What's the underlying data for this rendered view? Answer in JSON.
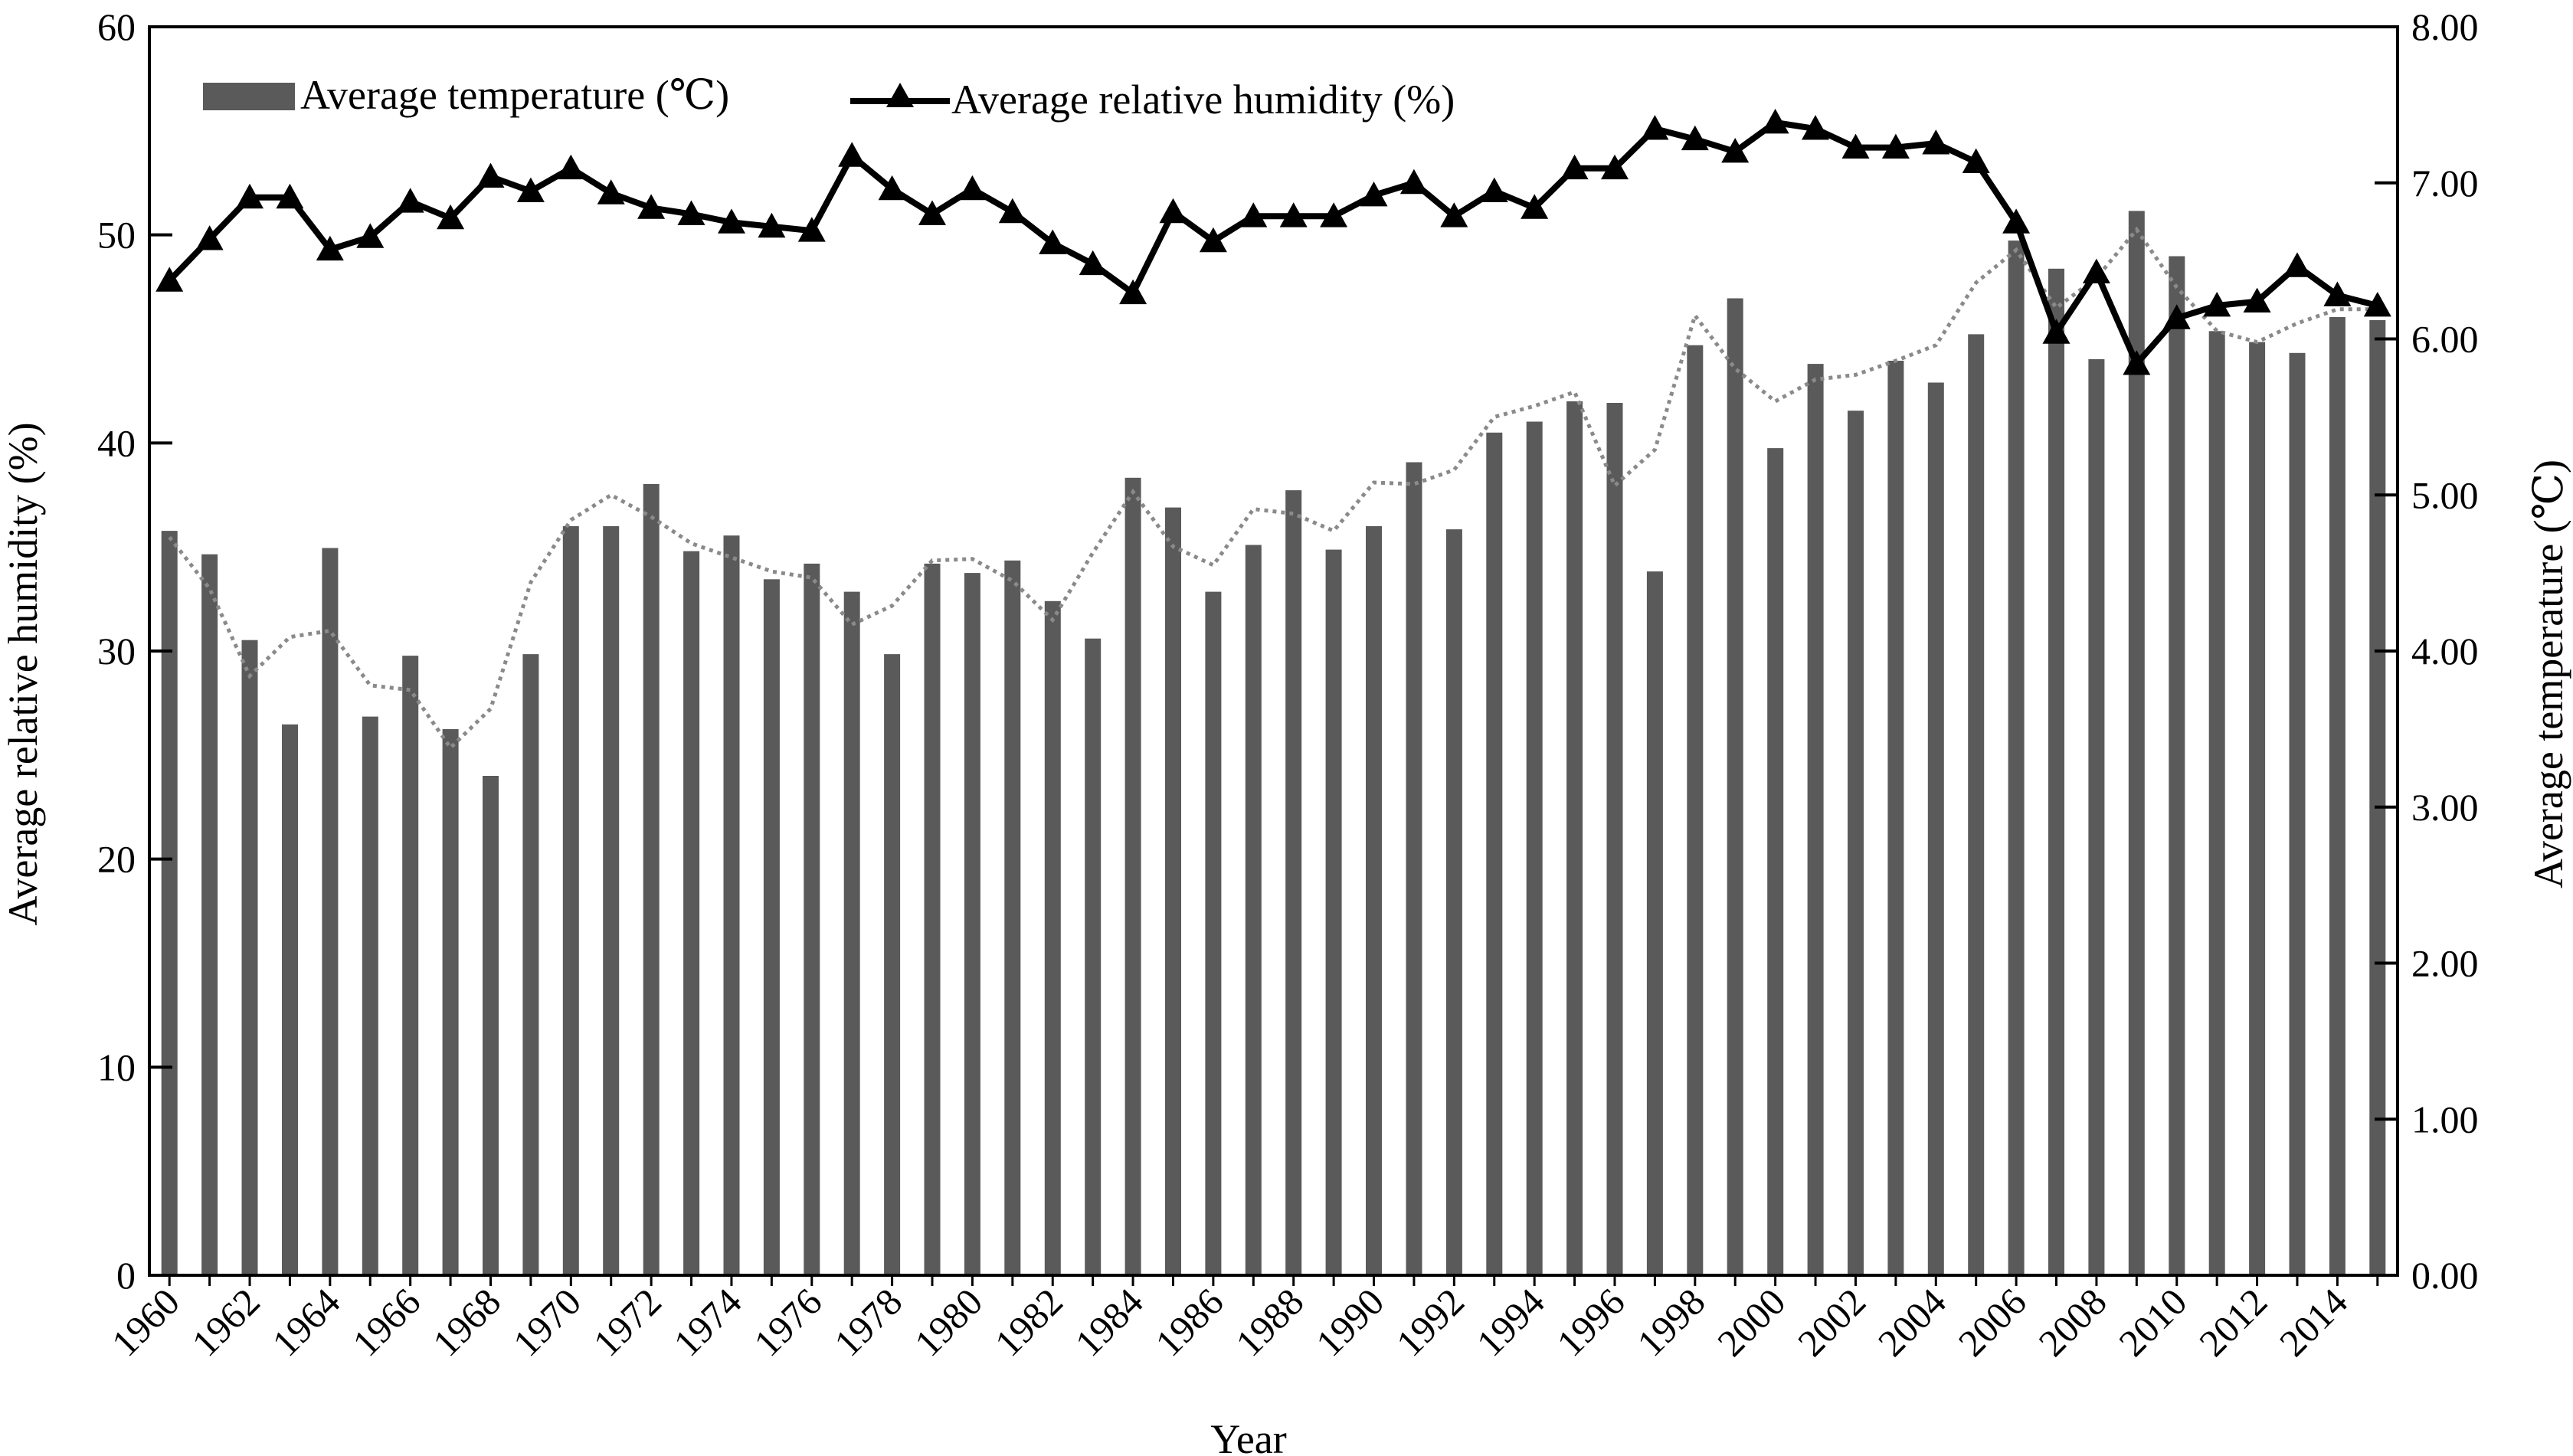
{
  "chart_data": {
    "type": "bar",
    "xlabel": "Year",
    "ylabel_left": "Average relative humidity (%)",
    "ylabel_right": "Average temperature (℃)",
    "y_left_range": [
      0,
      60
    ],
    "y_left_ticks": [
      "0",
      "10",
      "20",
      "30",
      "40",
      "50",
      "60"
    ],
    "y_right_range": [
      0,
      8
    ],
    "y_right_ticks": [
      "0.00",
      "1.00",
      "2.00",
      "3.00",
      "4.00",
      "5.00",
      "6.00",
      "7.00",
      "8.00"
    ],
    "x_tick_labels": [
      "1960",
      "1962",
      "1964",
      "1966",
      "1968",
      "1970",
      "1972",
      "1974",
      "1976",
      "1978",
      "1980",
      "1982",
      "1984",
      "1986",
      "1988",
      "1990",
      "1992",
      "1994",
      "1996",
      "1998",
      "2000",
      "2002",
      "2004",
      "2006",
      "2008",
      "2010",
      "2012",
      "2014"
    ],
    "years": [
      1960,
      1961,
      1962,
      1963,
      1964,
      1965,
      1966,
      1967,
      1968,
      1969,
      1970,
      1971,
      1972,
      1973,
      1974,
      1975,
      1976,
      1977,
      1978,
      1979,
      1980,
      1981,
      1982,
      1983,
      1984,
      1985,
      1986,
      1987,
      1988,
      1989,
      1990,
      1991,
      1992,
      1993,
      1994,
      1995,
      1996,
      1997,
      1998,
      1999,
      2000,
      2001,
      2002,
      2003,
      2004,
      2005,
      2006,
      2007,
      2008,
      2009,
      2010,
      2011,
      2012,
      2013,
      2014,
      2015
    ],
    "legend_position": "top-left",
    "grid": false,
    "series": [
      {
        "name": "Average temperature (℃)",
        "type": "bar",
        "axis": "right",
        "color": "#5a5a5a",
        "values": [
          4.77,
          4.62,
          4.07,
          3.53,
          4.66,
          3.58,
          3.97,
          3.5,
          3.2,
          3.98,
          4.8,
          4.8,
          5.07,
          4.64,
          4.74,
          4.46,
          4.56,
          4.38,
          3.98,
          4.56,
          4.5,
          4.58,
          4.32,
          4.08,
          5.11,
          4.92,
          4.38,
          4.68,
          5.03,
          4.65,
          4.8,
          5.21,
          4.78,
          5.4,
          5.47,
          5.6,
          5.59,
          4.51,
          5.96,
          6.26,
          5.3,
          5.84,
          5.54,
          5.86,
          5.72,
          6.03,
          6.63,
          6.45,
          5.87,
          6.82,
          6.53,
          6.05,
          5.98,
          5.91,
          6.14,
          6.12
        ]
      },
      {
        "name": "Average relative humidity (%)",
        "type": "line",
        "axis": "left",
        "color": "#000000",
        "marker": "triangle",
        "values": [
          47.8,
          49.8,
          51.8,
          51.8,
          49.3,
          49.9,
          51.6,
          50.8,
          52.8,
          52.1,
          53.2,
          52.0,
          51.3,
          51.0,
          50.6,
          50.4,
          50.2,
          53.8,
          52.2,
          51.0,
          52.2,
          51.1,
          49.6,
          48.6,
          47.2,
          51.1,
          49.7,
          50.9,
          50.9,
          50.9,
          51.9,
          52.5,
          50.9,
          52.1,
          51.3,
          53.2,
          53.2,
          55.1,
          54.6,
          54.0,
          55.4,
          55.1,
          54.2,
          54.2,
          54.4,
          53.5,
          50.6,
          45.3,
          48.2,
          43.8,
          46.0,
          46.6,
          46.8,
          48.5,
          47.1,
          46.6
        ]
      }
    ],
    "trend_line": {
      "style": "dotted",
      "axis": "right",
      "color": "#8a8a8a",
      "values": [
        4.73,
        4.4,
        3.84,
        4.09,
        4.13,
        3.78,
        3.75,
        3.38,
        3.63,
        4.44,
        4.84,
        5.0,
        4.86,
        4.69,
        4.6,
        4.51,
        4.47,
        4.17,
        4.29,
        4.58,
        4.59,
        4.45,
        4.2,
        4.63,
        5.02,
        4.67,
        4.55,
        4.91,
        4.88,
        4.77,
        5.08,
        5.07,
        5.16,
        5.5,
        5.57,
        5.66,
        5.06,
        5.29,
        6.15,
        5.81,
        5.6,
        5.74,
        5.77,
        5.86,
        5.96,
        6.36,
        6.57,
        6.2,
        6.39,
        6.7,
        6.33,
        6.05,
        5.98,
        6.1,
        6.19,
        6.19
      ]
    }
  }
}
